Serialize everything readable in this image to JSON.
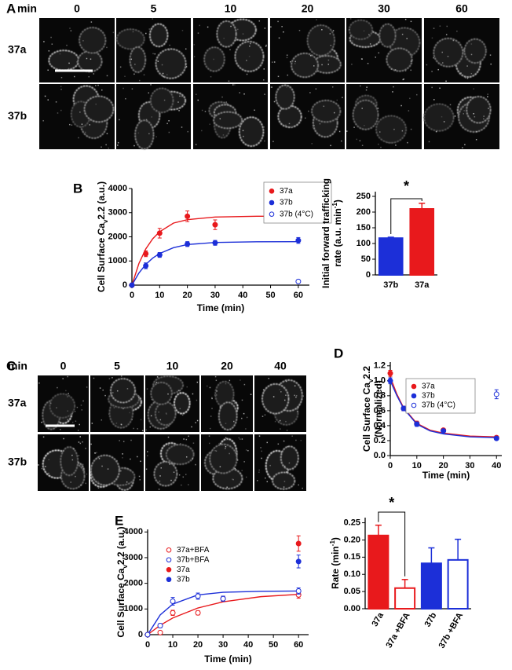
{
  "panel_a": {
    "label": "A",
    "time_label": "min",
    "times": [
      0,
      5,
      10,
      20,
      30,
      60
    ],
    "rows": [
      "37a",
      "37b"
    ]
  },
  "panel_c": {
    "label": "C",
    "time_label": "min",
    "times": [
      0,
      5,
      10,
      20,
      40
    ],
    "rows": [
      "37a",
      "37b"
    ]
  },
  "chart_data": [
    {
      "type": "scatter",
      "panel": "B",
      "xlabel": "Time (min)",
      "ylabel": [
        [
          {
            "text": "Cell Surface Ca"
          },
          {
            "text": "v",
            "shift": "sub"
          },
          {
            "text": "2.2 (a.u.)"
          }
        ]
      ],
      "xlim": [
        0,
        64
      ],
      "xticks": [
        0,
        10,
        20,
        30,
        40,
        50,
        60
      ],
      "ylim": [
        0,
        4000
      ],
      "yticks": [
        0,
        1000,
        2000,
        3000,
        4000
      ],
      "legend_frame": true,
      "series": [
        {
          "name": "37a",
          "color": "#e8191c",
          "filled": true,
          "x": [
            0,
            5,
            10,
            20,
            30,
            60
          ],
          "values": [
            0,
            1300,
            2150,
            2850,
            2500,
            2950
          ],
          "errors": [
            0,
            120,
            200,
            220,
            200,
            250
          ],
          "fit": {
            "x": [
              0,
              2.5,
              5,
              7.5,
              10,
              15,
              20,
              30,
              45,
              60
            ],
            "values": [
              0,
              890,
              1500,
              1920,
              2210,
              2570,
              2710,
              2820,
              2850,
              2850
            ]
          }
        },
        {
          "name": "37b",
          "color": "#1c2fd8",
          "filled": true,
          "x": [
            0,
            5,
            10,
            20,
            30,
            60
          ],
          "values": [
            0,
            800,
            1250,
            1700,
            1750,
            1850
          ],
          "errors": [
            0,
            120,
            100,
            100,
            100,
            120
          ],
          "fit": {
            "x": [
              0,
              2.5,
              5,
              7.5,
              10,
              15,
              20,
              30,
              45,
              60
            ],
            "values": [
              0,
              500,
              860,
              1120,
              1310,
              1550,
              1680,
              1765,
              1795,
              1800
            ]
          }
        },
        {
          "name": "37b (4°C)",
          "color": "#1c2fd8",
          "filled": false,
          "x": [
            60
          ],
          "values": [
            150
          ],
          "errors": [
            30
          ]
        }
      ]
    },
    {
      "type": "bar",
      "ylabel": [
        [
          {
            "text": "Initial forward trafficking"
          }
        ],
        [
          {
            "text": "rate (a.u. min"
          },
          {
            "text": "-1",
            "shift": "super"
          },
          {
            "text": ")"
          }
        ]
      ],
      "ylim": [
        0,
        265
      ],
      "yticks": [
        0,
        50,
        100,
        150,
        200,
        250
      ],
      "categories": [
        "37b",
        "37a"
      ],
      "values": [
        117,
        210
      ],
      "errors": [
        3,
        18
      ],
      "colors": [
        "#1c2fd8",
        "#e8191c"
      ],
      "filled": [
        true,
        true
      ],
      "significance": "*",
      "rotated_labels": false
    },
    {
      "type": "scatter",
      "panel": "D",
      "xlabel": "Time (min)",
      "ylabel": [
        [
          {
            "text": "Cell Surface Ca"
          },
          {
            "text": "v",
            "shift": "sub"
          },
          {
            "text": "2.2"
          }
        ],
        [
          {
            "text": "(Normalized)"
          }
        ]
      ],
      "xlim": [
        0,
        42
      ],
      "xticks": [
        0,
        10,
        20,
        30,
        40
      ],
      "ylim": [
        0,
        1.25
      ],
      "yticks": [
        {
          "value": 0,
          "label": "0.0"
        },
        0.2,
        0.4,
        0.6,
        0.8,
        {
          "value": 1,
          "label": "1.0"
        },
        1.2
      ],
      "legend_frame": true,
      "series": [
        {
          "name": "37a",
          "color": "#e8191c",
          "filled": true,
          "x": [
            0,
            5,
            10,
            20,
            40
          ],
          "values": [
            1.1,
            0.63,
            0.43,
            0.34,
            0.24
          ],
          "errors": [
            0.04,
            0.03,
            0.03,
            0.02,
            0.02
          ],
          "fit": {
            "x": [
              0,
              2.5,
              5,
              10,
              15,
              20,
              30,
              40
            ],
            "values": [
              1.05,
              0.82,
              0.64,
              0.43,
              0.34,
              0.3,
              0.26,
              0.25
            ]
          }
        },
        {
          "name": "37b",
          "color": "#1c2fd8",
          "filled": true,
          "x": [
            0,
            5,
            10,
            20,
            40
          ],
          "values": [
            1.0,
            0.63,
            0.42,
            0.33,
            0.23
          ],
          "errors": [
            0.04,
            0.03,
            0.03,
            0.02,
            0.02
          ],
          "fit": {
            "x": [
              0,
              2.5,
              5,
              10,
              15,
              20,
              30,
              40
            ],
            "values": [
              1.0,
              0.8,
              0.63,
              0.42,
              0.33,
              0.29,
              0.25,
              0.24
            ]
          }
        },
        {
          "name": "37b (4°C)",
          "color": "#1c2fd8",
          "filled": false,
          "x": [
            40
          ],
          "values": [
            0.82
          ],
          "errors": [
            0.06
          ]
        }
      ]
    },
    {
      "type": "scatter",
      "panel": "E",
      "xlabel": "Time (min)",
      "ylabel": [
        [
          {
            "text": "Cell Surface Ca"
          },
          {
            "text": "v",
            "shift": "sub"
          },
          {
            "text": "2.2 (a.u.)"
          }
        ]
      ],
      "xlim": [
        0,
        64
      ],
      "xticks": [
        0,
        10,
        20,
        30,
        40,
        50,
        60
      ],
      "ylim": [
        0,
        4100
      ],
      "yticks": [
        0,
        1000,
        2000,
        3000,
        4000
      ],
      "legend_frame": false,
      "series": [
        {
          "name": "37a+BFA",
          "color": "#e8191c",
          "filled": false,
          "x": [
            0,
            5,
            10,
            20,
            30,
            60
          ],
          "values": [
            0,
            80,
            850,
            850,
            1400,
            1550
          ],
          "errors": [
            0,
            60,
            100,
            80,
            100,
            130
          ],
          "fit": {
            "x": [
              0,
              5,
              10,
              20,
              30,
              45,
              60
            ],
            "values": [
              0,
              365,
              650,
              1040,
              1280,
              1480,
              1570
            ]
          }
        },
        {
          "name": "37b+BFA",
          "color": "#1c2fd8",
          "filled": false,
          "x": [
            0,
            5,
            10,
            20,
            30,
            60
          ],
          "values": [
            0,
            350,
            1300,
            1500,
            1400,
            1700
          ],
          "errors": [
            0,
            80,
            150,
            120,
            100,
            120
          ],
          "fit": {
            "x": [
              0,
              5,
              10,
              20,
              30,
              45,
              60
            ],
            "values": [
              0,
              770,
              1190,
              1550,
              1650,
              1690,
              1700
            ]
          }
        },
        {
          "name": "37a",
          "color": "#e8191c",
          "filled": true,
          "x": [
            60
          ],
          "values": [
            3550
          ],
          "errors": [
            300
          ]
        },
        {
          "name": "37b",
          "color": "#1c2fd8",
          "filled": true,
          "x": [
            60
          ],
          "values": [
            2850
          ],
          "errors": [
            250
          ]
        }
      ]
    },
    {
      "type": "bar",
      "ylabel": [
        [
          {
            "text": "Rate (min"
          },
          {
            "text": "-1",
            "shift": "super"
          },
          {
            "text": ")"
          }
        ]
      ],
      "ylim": [
        0,
        0.265
      ],
      "yticks": [
        {
          "value": 0,
          "label": "0.00"
        },
        {
          "value": 0.05,
          "label": "0.05"
        },
        {
          "value": 0.1,
          "label": "0.10"
        },
        {
          "value": 0.15,
          "label": "0.15"
        },
        {
          "value": 0.2,
          "label": "0.20"
        },
        {
          "value": 0.25,
          "label": "0.25"
        }
      ],
      "categories": [
        "37a",
        "37a +BFA",
        "37b",
        "37b +BFA"
      ],
      "values": [
        0.213,
        0.06,
        0.132,
        0.142
      ],
      "errors": [
        0.03,
        0.025,
        0.045,
        0.06
      ],
      "colors": [
        "#e8191c",
        "#e8191c",
        "#1c2fd8",
        "#1c2fd8"
      ],
      "filled": [
        true,
        false,
        true,
        false
      ],
      "significance": "*",
      "rotated_labels": true
    }
  ]
}
